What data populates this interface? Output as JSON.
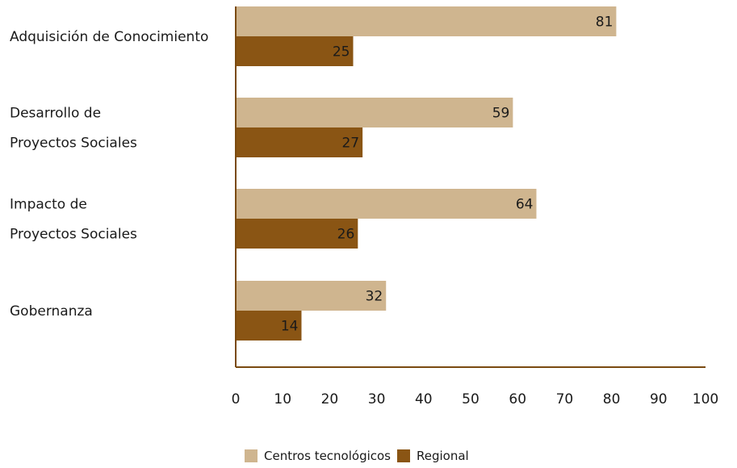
{
  "chart_data": {
    "type": "bar",
    "orientation": "horizontal",
    "categories": [
      [
        "Adquisición de Conocimiento"
      ],
      [
        "Desarrollo de",
        "Proyectos Sociales"
      ],
      [
        "Impacto de",
        "Proyectos Sociales"
      ],
      [
        "Gobernanza"
      ]
    ],
    "series": [
      {
        "name": "Centros tecnológicos",
        "color": "#cfb58f",
        "values": [
          81,
          59,
          64,
          32
        ]
      },
      {
        "name": "Regional",
        "color": "#8a5514",
        "values": [
          25,
          27,
          26,
          14
        ]
      }
    ],
    "xlim": [
      0,
      100
    ],
    "xticks": [
      0,
      10,
      20,
      30,
      40,
      50,
      60,
      70,
      80,
      90,
      100
    ],
    "axis_color": "#7a4a10",
    "grid": false,
    "legend_position": "bottom"
  }
}
